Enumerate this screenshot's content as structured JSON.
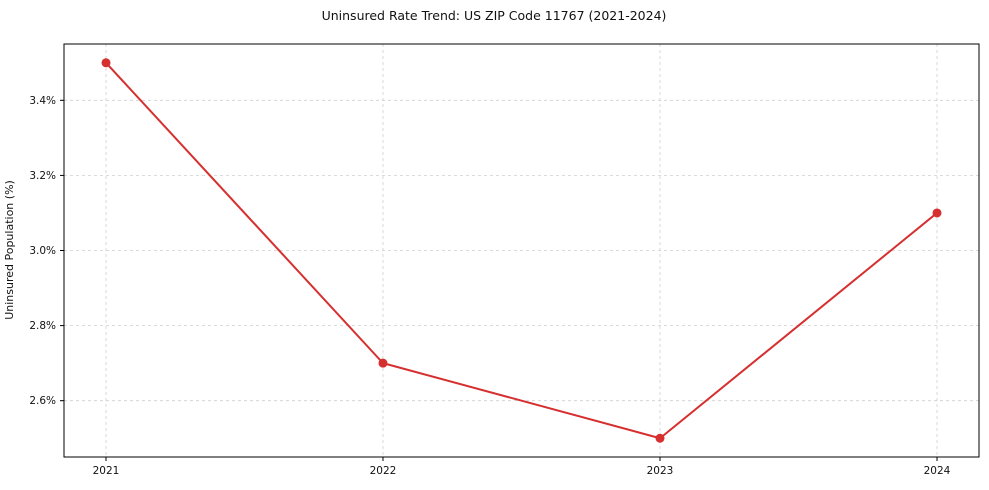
{
  "chart_data": {
    "type": "line",
    "title": "Uninsured Rate Trend: US ZIP Code 11767 (2021-2024)",
    "xlabel": "",
    "ylabel": "Uninsured Population (%)",
    "x": [
      2021,
      2022,
      2023,
      2024
    ],
    "xtick_labels": [
      "2021",
      "2022",
      "2023",
      "2024"
    ],
    "values": [
      3.5,
      2.7,
      2.5,
      3.1
    ],
    "ylim": [
      2.45,
      3.55
    ],
    "yticks": [
      2.6,
      2.8,
      3.0,
      3.2,
      3.4
    ],
    "ytick_labels": [
      "2.6%",
      "2.8%",
      "3.0%",
      "3.2%",
      "3.4%"
    ],
    "grid": true,
    "legend": "none",
    "line_color": "#d62f2f",
    "marker": "circle",
    "grid_color": "#cfcfcf",
    "background": "#ffffff",
    "frame_color": "#000000"
  }
}
